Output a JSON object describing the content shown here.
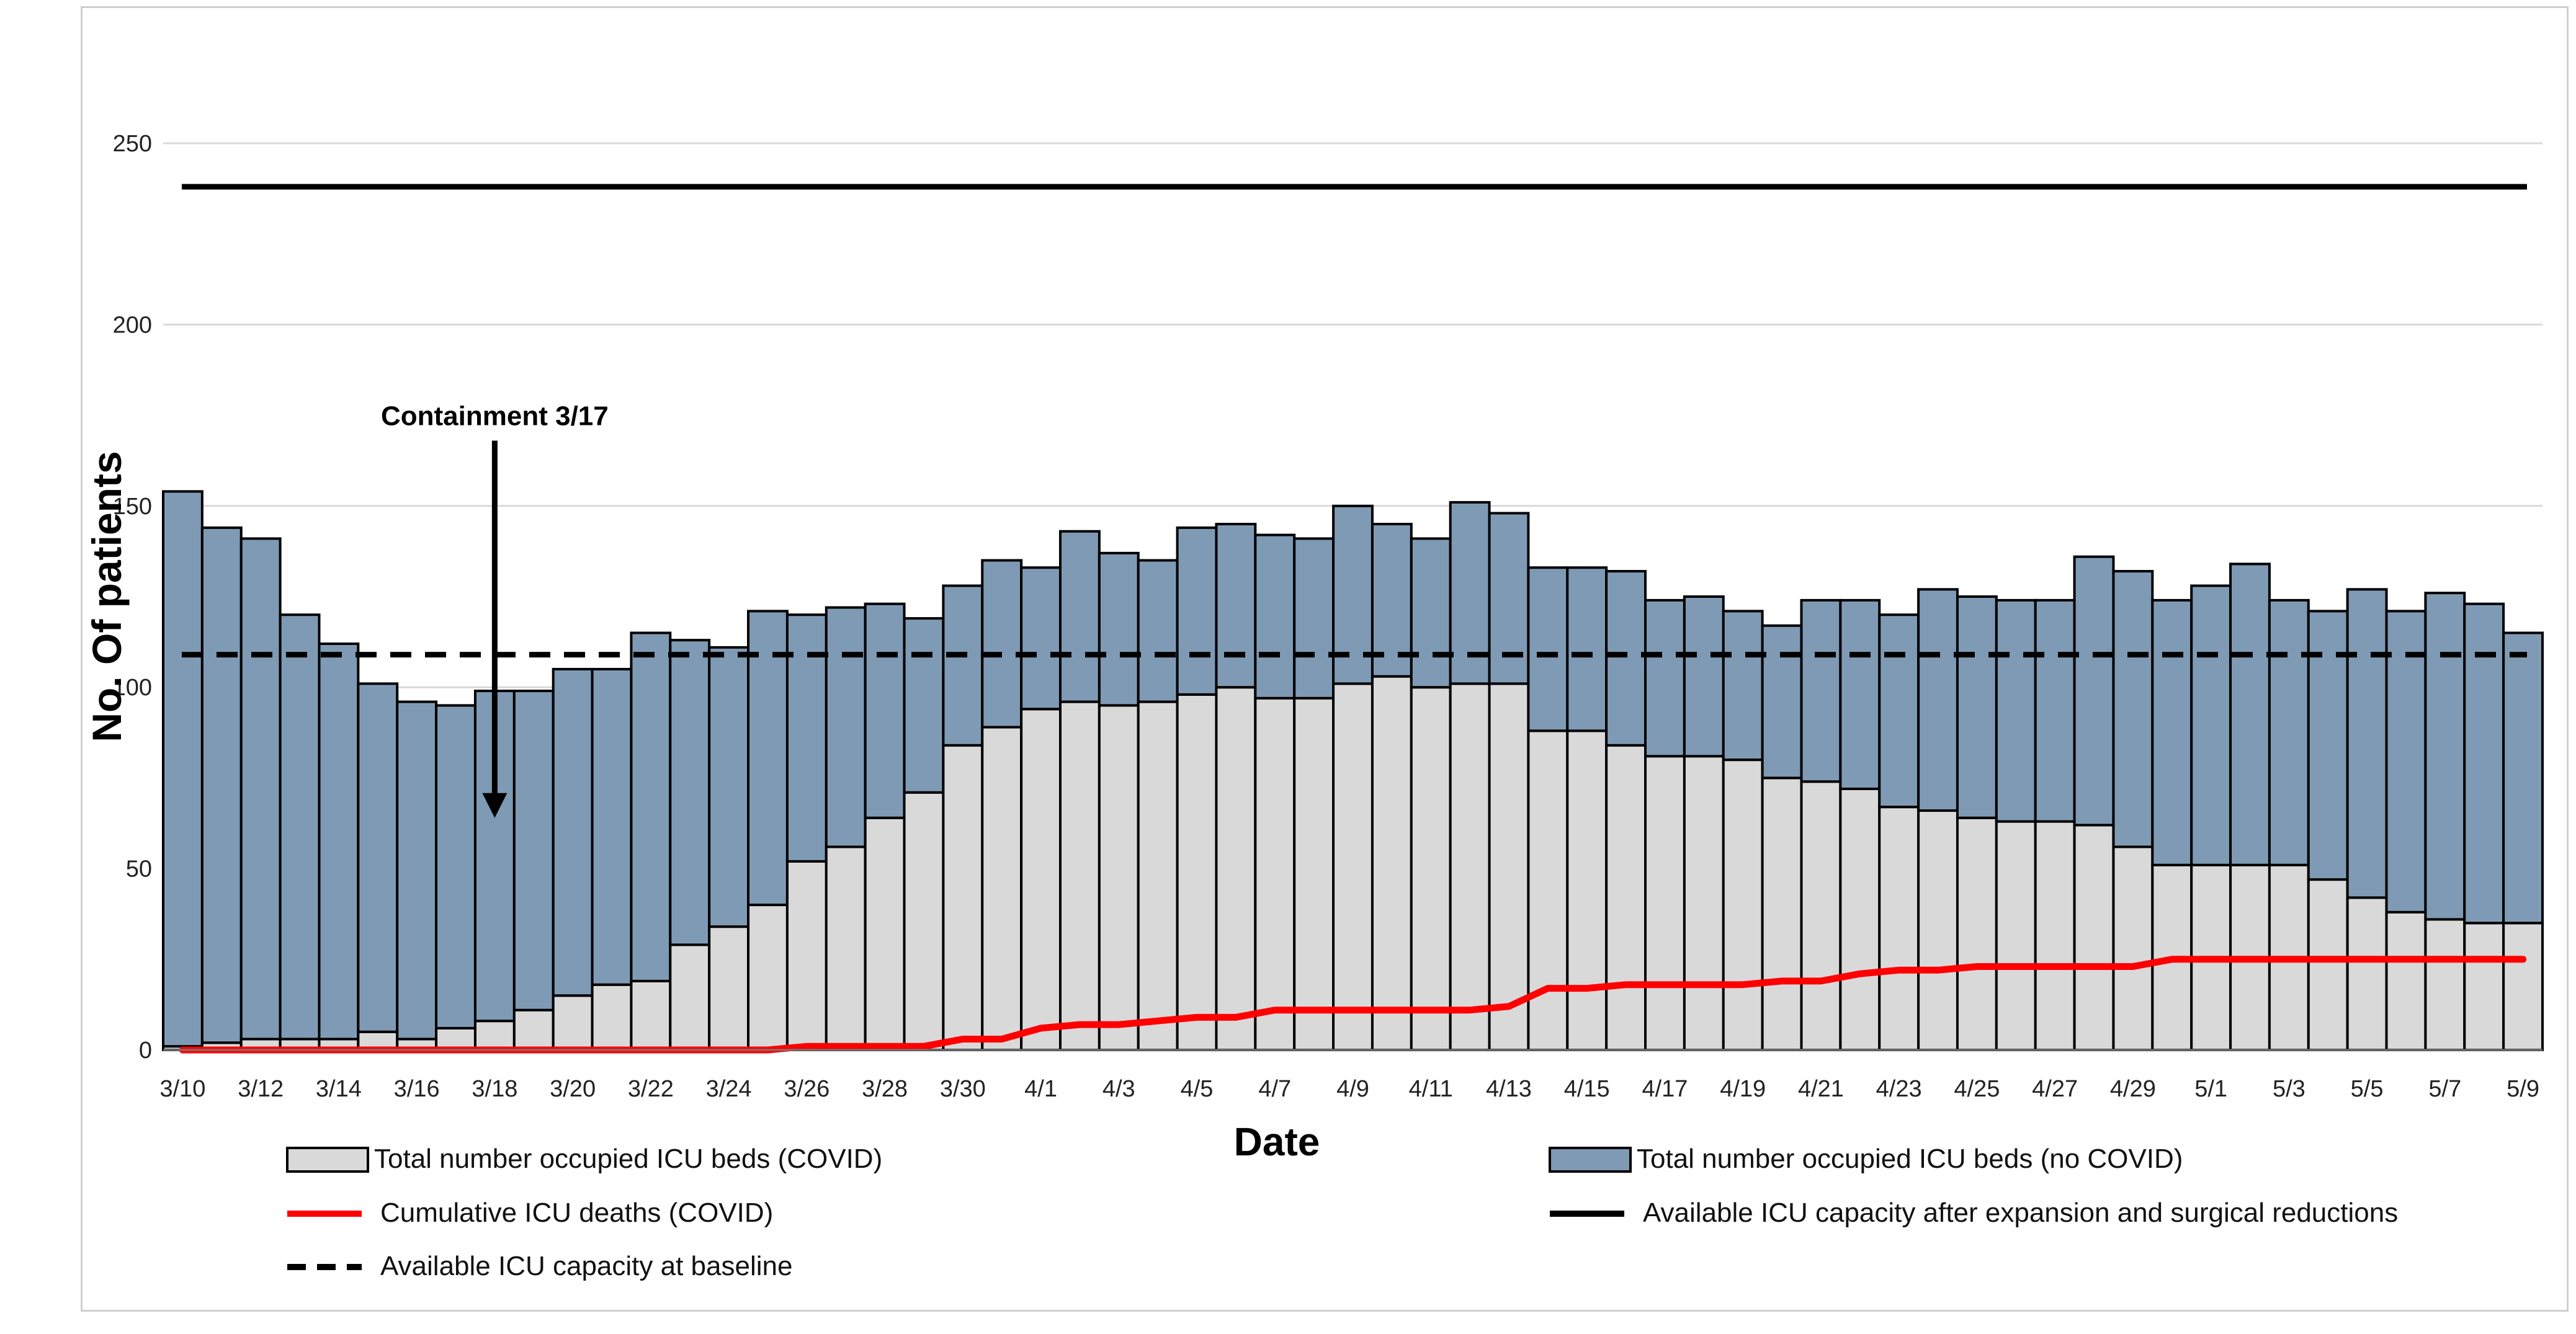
{
  "chart_data": {
    "type": "bar",
    "stacked": true,
    "xlabel": "Date",
    "ylabel": "No. Of patients",
    "ylim": [
      0,
      250
    ],
    "yticks": [
      0,
      50,
      100,
      150,
      200,
      250
    ],
    "grid": "horizontal",
    "legend_position": "bottom",
    "x_tick_labels": [
      "3/10",
      "3/12",
      "3/14",
      "3/16",
      "3/18",
      "3/20",
      "3/22",
      "3/24",
      "3/26",
      "3/28",
      "3/30",
      "4/1",
      "4/3",
      "4/5",
      "4/7",
      "4/9",
      "4/11",
      "4/13",
      "4/15",
      "4/17",
      "4/19",
      "4/21",
      "4/23",
      "4/25",
      "4/27",
      "4/29",
      "5/1",
      "5/3",
      "5/5",
      "5/7",
      "5/9"
    ],
    "categories": [
      "3/10",
      "3/11",
      "3/12",
      "3/13",
      "3/14",
      "3/15",
      "3/16",
      "3/17",
      "3/18",
      "3/19",
      "3/20",
      "3/21",
      "3/22",
      "3/23",
      "3/24",
      "3/25",
      "3/26",
      "3/27",
      "3/28",
      "3/29",
      "3/30",
      "3/31",
      "4/1",
      "4/2",
      "4/3",
      "4/4",
      "4/5",
      "4/6",
      "4/7",
      "4/8",
      "4/9",
      "4/10",
      "4/11",
      "4/12",
      "4/13",
      "4/14",
      "4/15",
      "4/16",
      "4/17",
      "4/18",
      "4/19",
      "4/20",
      "4/21",
      "4/22",
      "4/23",
      "4/24",
      "4/25",
      "4/26",
      "4/27",
      "4/28",
      "4/29",
      "4/30",
      "5/1",
      "5/2",
      "5/3",
      "5/4",
      "5/5",
      "5/6",
      "5/7",
      "5/8",
      "5/9"
    ],
    "series": [
      {
        "name": "Total number occupied ICU beds (COVID)",
        "kind": "bar",
        "color": "#d9d9d9",
        "values": [
          1,
          2,
          3,
          3,
          3,
          5,
          3,
          6,
          8,
          11,
          15,
          18,
          19,
          29,
          34,
          40,
          52,
          56,
          64,
          71,
          84,
          89,
          94,
          96,
          95,
          96,
          98,
          100,
          97,
          97,
          101,
          103,
          100,
          101,
          101,
          88,
          88,
          84,
          81,
          81,
          80,
          75,
          74,
          72,
          67,
          66,
          64,
          63,
          63,
          62,
          56,
          51,
          51,
          51,
          51,
          47,
          42,
          38,
          36,
          35,
          35
        ]
      },
      {
        "name": "Total number occupied ICU beds (no COVID)",
        "kind": "bar",
        "color": "#7f9ab4",
        "values": [
          153,
          142,
          138,
          117,
          109,
          96,
          93,
          89,
          91,
          88,
          90,
          87,
          96,
          84,
          77,
          81,
          68,
          66,
          59,
          48,
          44,
          46,
          39,
          47,
          42,
          39,
          46,
          45,
          45,
          44,
          49,
          42,
          41,
          50,
          47,
          45,
          45,
          48,
          43,
          44,
          41,
          42,
          50,
          52,
          53,
          61,
          61,
          61,
          61,
          74,
          76,
          73,
          77,
          83,
          73,
          74,
          85,
          83,
          90,
          88,
          80
        ]
      },
      {
        "name": "Cumulative ICU deaths (COVID)",
        "kind": "line",
        "color": "#ff0000",
        "values": [
          0,
          0,
          0,
          0,
          0,
          0,
          0,
          0,
          0,
          0,
          0,
          0,
          0,
          0,
          0,
          0,
          1,
          1,
          1,
          1,
          3,
          3,
          6,
          7,
          7,
          8,
          9,
          9,
          11,
          11,
          11,
          11,
          11,
          11,
          12,
          17,
          17,
          18,
          18,
          18,
          18,
          19,
          19,
          21,
          22,
          22,
          23,
          23,
          23,
          23,
          23,
          25,
          25,
          25,
          25,
          25,
          25,
          25,
          25,
          25,
          25
        ]
      },
      {
        "name": "Available ICU capacity after expansion and surgical reductions",
        "kind": "hline",
        "color": "#000000",
        "value": 238
      },
      {
        "name": "Available ICU capacity at baseline",
        "kind": "hline-dashed",
        "color": "#000000",
        "value": 109
      }
    ],
    "annotations": [
      {
        "text": "Containment 3/17",
        "x_category": "3/18",
        "arrow_from_y": 168,
        "arrow_to_y": 64
      }
    ]
  }
}
